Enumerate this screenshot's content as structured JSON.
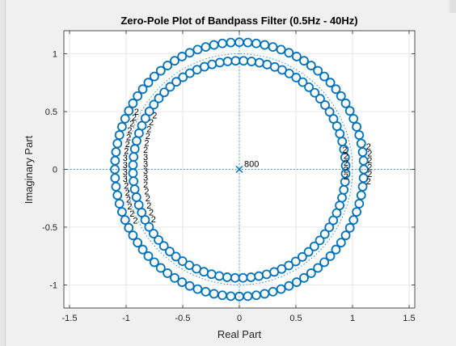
{
  "chart_data": {
    "type": "scatter",
    "title": "Zero-Pole Plot of Bandpass Filter (0.5Hz - 40Hz)",
    "xlabel": "Real Part",
    "ylabel": "Imaginary Part",
    "xlim": [
      -1.55,
      1.55
    ],
    "ylim": [
      -1.2,
      1.2
    ],
    "x_ticks": [
      -1.5,
      -1,
      -0.5,
      0,
      0.5,
      1,
      1.5
    ],
    "x_tick_labels": [
      "-1.5",
      "-1",
      "-0.5",
      "0",
      "0.5",
      "1",
      "1.5"
    ],
    "y_ticks": [
      -1,
      -0.5,
      0,
      0.5,
      1
    ],
    "y_tick_labels": [
      "-1",
      "-0.5",
      "0",
      "0.5",
      "1"
    ],
    "grid": true,
    "unit_circle": true,
    "colors": {
      "marker": "#0072BD",
      "axes_bg": "#ffffff",
      "grid": "#dcdcdc",
      "figure_bg": "#f0f0f0"
    },
    "series": [
      {
        "marker": "o",
        "radius": 1.1,
        "count": 92,
        "phase_deg": 0
      },
      {
        "marker": "o",
        "radius": 0.94,
        "count": 84,
        "phase_deg": 2
      }
    ],
    "poles": [
      {
        "x": 0,
        "y": 0,
        "marker": "x",
        "multiplicity_label": "800"
      }
    ],
    "multiplicity_labels": [
      {
        "text": "2",
        "x": -0.93,
        "y": 0.5
      },
      {
        "text": "2",
        "x": -0.95,
        "y": 0.45
      },
      {
        "text": "2",
        "x": -0.97,
        "y": 0.4
      },
      {
        "text": "2",
        "x": -0.99,
        "y": 0.34
      },
      {
        "text": "2",
        "x": -1.0,
        "y": 0.28
      },
      {
        "text": "2",
        "x": -1.01,
        "y": 0.22
      },
      {
        "text": "2",
        "x": -1.02,
        "y": 0.16
      },
      {
        "text": "3",
        "x": -1.03,
        "y": 0.1
      },
      {
        "text": "3",
        "x": -1.03,
        "y": 0.04
      },
      {
        "text": "3",
        "x": -1.03,
        "y": -0.02
      },
      {
        "text": "3",
        "x": -1.03,
        "y": -0.08
      },
      {
        "text": "2",
        "x": -1.02,
        "y": -0.14
      },
      {
        "text": "2",
        "x": -1.01,
        "y": -0.2
      },
      {
        "text": "2",
        "x": -1.0,
        "y": -0.26
      },
      {
        "text": "2",
        "x": -0.99,
        "y": -0.32
      },
      {
        "text": "2",
        "x": -0.97,
        "y": -0.38
      },
      {
        "text": "2",
        "x": -0.94,
        "y": -0.44
      },
      {
        "text": "2",
        "x": -0.77,
        "y": 0.47
      },
      {
        "text": "2",
        "x": -0.8,
        "y": 0.41
      },
      {
        "text": "2",
        "x": -0.82,
        "y": 0.35
      },
      {
        "text": "2",
        "x": -0.83,
        "y": 0.29
      },
      {
        "text": "2",
        "x": -0.84,
        "y": 0.23
      },
      {
        "text": "2",
        "x": -0.85,
        "y": 0.17
      },
      {
        "text": "3",
        "x": -0.85,
        "y": 0.11
      },
      {
        "text": "3",
        "x": -0.85,
        "y": 0.05
      },
      {
        "text": "3",
        "x": -0.85,
        "y": -0.01
      },
      {
        "text": "3",
        "x": -0.85,
        "y": -0.07
      },
      {
        "text": "2",
        "x": -0.85,
        "y": -0.13
      },
      {
        "text": "2",
        "x": -0.84,
        "y": -0.19
      },
      {
        "text": "2",
        "x": -0.83,
        "y": -0.25
      },
      {
        "text": "2",
        "x": -0.82,
        "y": -0.31
      },
      {
        "text": "2",
        "x": -0.8,
        "y": -0.37
      },
      {
        "text": "2",
        "x": -0.78,
        "y": -0.43
      },
      {
        "text": "2",
        "x": 0.91,
        "y": 0.17
      },
      {
        "text": "2",
        "x": 0.92,
        "y": 0.12
      },
      {
        "text": "2",
        "x": 0.92,
        "y": 0.06
      },
      {
        "text": "2",
        "x": 0.92,
        "y": 0.0
      },
      {
        "text": "2",
        "x": 0.92,
        "y": -0.06
      },
      {
        "text": "2",
        "x": 1.12,
        "y": 0.2
      },
      {
        "text": "2",
        "x": 1.13,
        "y": 0.14
      },
      {
        "text": "2",
        "x": 1.13,
        "y": 0.08
      },
      {
        "text": "2",
        "x": 1.13,
        "y": 0.02
      },
      {
        "text": "2",
        "x": 1.13,
        "y": -0.04
      },
      {
        "text": "2",
        "x": 1.12,
        "y": -0.1
      }
    ]
  }
}
